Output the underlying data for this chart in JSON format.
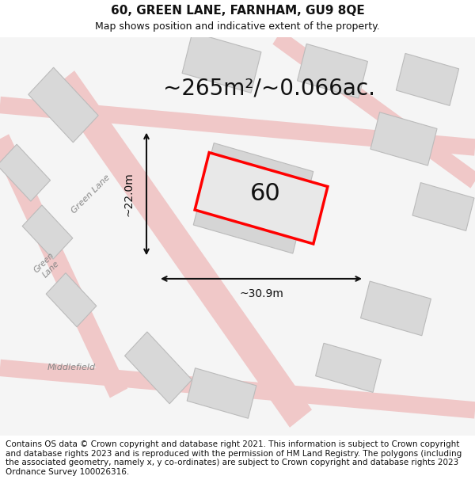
{
  "title": "60, GREEN LANE, FARNHAM, GU9 8QE",
  "subtitle": "Map shows position and indicative extent of the property.",
  "area_text": "~265m²/~0.066ac.",
  "label_60": "60",
  "dim_width": "~30.9m",
  "dim_height": "~22.0m",
  "footer": "Contains OS data © Crown copyright and database right 2021. This information is subject to Crown copyright and database rights 2023 and is reproduced with the permission of HM Land Registry. The polygons (including the associated geometry, namely x, y co-ordinates) are subject to Crown copyright and database rights 2023 Ordnance Survey 100026316.",
  "bg_color": "#f5f5f5",
  "map_bg": "#f0f0f0",
  "footer_bg": "#ffffff",
  "road_color_light": "#f5c0c0",
  "road_color_dark": "#e08080",
  "block_color": "#d8d8d8",
  "block_outline": "#cccccc",
  "plot_color": "#ff0000",
  "arrow_color": "#111111",
  "text_color": "#111111",
  "street_label_color": "#888888",
  "title_fontsize": 11,
  "subtitle_fontsize": 9,
  "area_fontsize": 20,
  "label_fontsize": 22,
  "dim_fontsize": 10,
  "footer_fontsize": 7.5
}
